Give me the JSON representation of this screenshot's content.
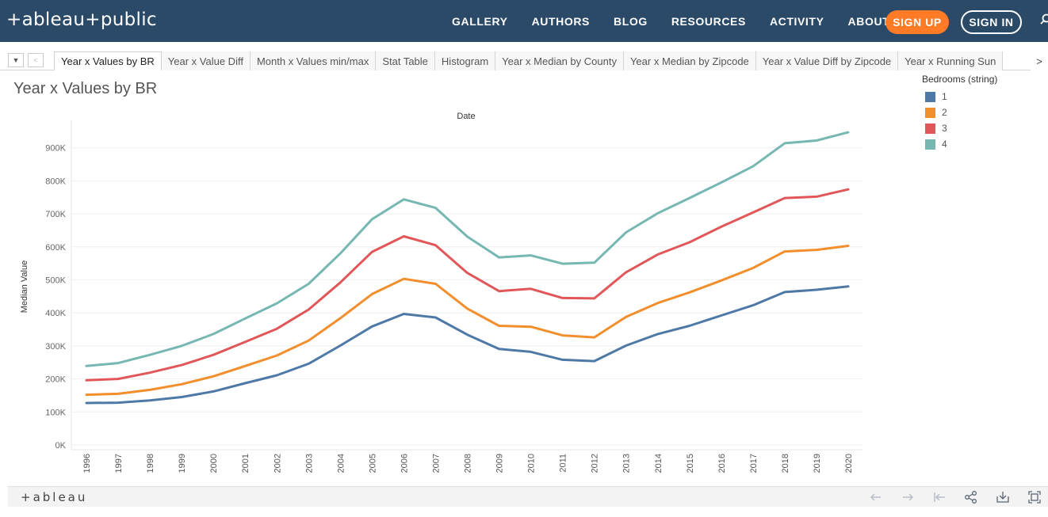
{
  "app": {
    "logo": "+ableau+public"
  },
  "nav": {
    "items": [
      "GALLERY",
      "AUTHORS",
      "BLOG",
      "RESOURCES",
      "ACTIVITY",
      "ABOUT"
    ],
    "sign_up": "SIGN UP",
    "sign_in": "SIGN IN"
  },
  "tabs": {
    "items": [
      "Year x Values by BR",
      "Year x Value Diff",
      "Month x Values min/max",
      "Stat Table",
      "Histogram",
      "Year x Median by County",
      "Year x Median by Zipcode",
      "Year x Value Diff by Zipcode",
      "Year x Running Sun"
    ],
    "active_index": 0,
    "menu_glyph": "▼",
    "prev_glyph": "<",
    "next_glyph": ">"
  },
  "viz": {
    "title": "Year x Values by BR"
  },
  "legend": {
    "title": "Bedrooms (string)",
    "items": [
      {
        "label": "1",
        "color": "#4e79a7"
      },
      {
        "label": "2",
        "color": "#f28e2b"
      },
      {
        "label": "3",
        "color": "#e15759"
      },
      {
        "label": "4",
        "color": "#76b7b2"
      }
    ]
  },
  "footer": {
    "logo": "+ableau",
    "icons": [
      "undo-icon",
      "redo-icon",
      "revert-icon",
      "share-icon",
      "download-icon",
      "fullscreen-icon"
    ]
  },
  "chart_data": {
    "type": "line",
    "title": "",
    "column_header": "Date",
    "xlabel": "",
    "ylabel": "Median Value",
    "ylim": [
      0,
      950000
    ],
    "y_ticks": [
      0,
      100000,
      200000,
      300000,
      400000,
      500000,
      600000,
      700000,
      800000,
      900000
    ],
    "y_tick_labels": [
      "0K",
      "100K",
      "200K",
      "300K",
      "400K",
      "500K",
      "600K",
      "700K",
      "800K",
      "900K"
    ],
    "grid": true,
    "legend_position": "top-right",
    "categories": [
      "1996",
      "1997",
      "1998",
      "1999",
      "2000",
      "2001",
      "2002",
      "2003",
      "2004",
      "2005",
      "2006",
      "2007",
      "2008",
      "2009",
      "2010",
      "2011",
      "2012",
      "2013",
      "2014",
      "2015",
      "2016",
      "2017",
      "2018",
      "2019",
      "2020"
    ],
    "series": [
      {
        "name": "1",
        "color": "#4e79a7",
        "values": [
          127000,
          128000,
          135000,
          145000,
          162000,
          187000,
          211000,
          246000,
          301000,
          359000,
          397000,
          386000,
          334000,
          291000,
          282000,
          258000,
          254000,
          301000,
          336000,
          361000,
          392000,
          423000,
          463000,
          470000,
          480000
        ]
      },
      {
        "name": "2",
        "color": "#f28e2b",
        "values": [
          152000,
          155000,
          167000,
          184000,
          208000,
          239000,
          271000,
          316000,
          384000,
          457000,
          503000,
          488000,
          413000,
          361000,
          358000,
          332000,
          326000,
          388000,
          430000,
          462000,
          498000,
          536000,
          586000,
          591000,
          603000
        ]
      },
      {
        "name": "3",
        "color": "#e15759",
        "values": [
          196000,
          200000,
          219000,
          242000,
          273000,
          312000,
          352000,
          410000,
          492000,
          585000,
          632000,
          605000,
          521000,
          466000,
          473000,
          445000,
          444000,
          523000,
          577000,
          614000,
          661000,
          704000,
          748000,
          752000,
          774000
        ]
      },
      {
        "name": "4",
        "color": "#76b7b2",
        "values": [
          239000,
          248000,
          273000,
          300000,
          336000,
          383000,
          429000,
          488000,
          580000,
          684000,
          744000,
          718000,
          631000,
          568000,
          574000,
          549000,
          552000,
          644000,
          702000,
          748000,
          795000,
          844000,
          914000,
          922000,
          947000
        ]
      }
    ]
  }
}
